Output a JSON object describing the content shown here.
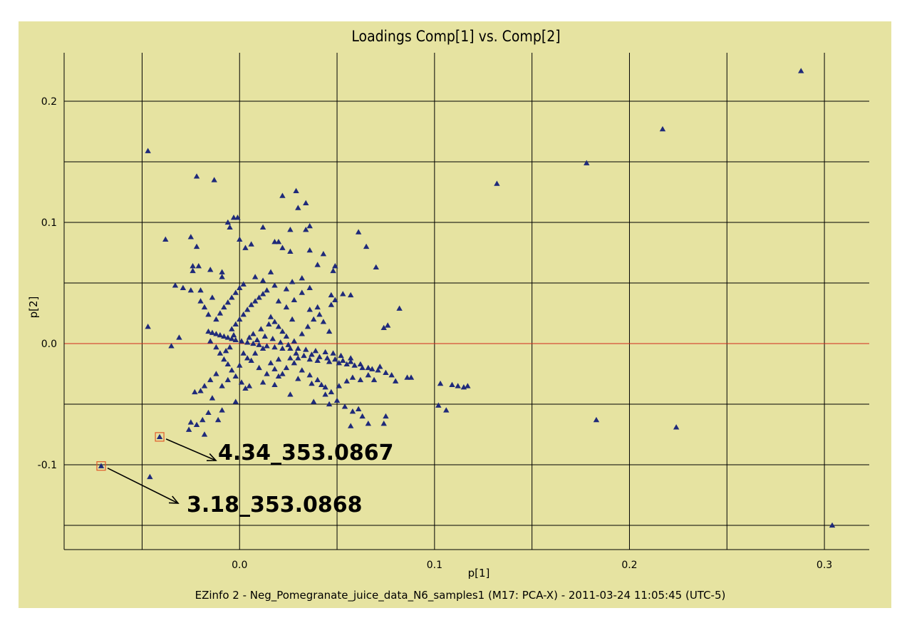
{
  "chart_data": {
    "type": "scatter",
    "title": "Loadings Comp[1] vs. Comp[2]",
    "xlabel": "p[1]",
    "ylabel": "p[2]",
    "footer": "EZinfo 2 - Neg_Pomegranate_juice_data_N6_samples1 (M17: PCA-X) - 2011-03-24 11:05:45 (UTC-5)",
    "xlim": [
      -0.09,
      0.323
    ],
    "ylim": [
      -0.17,
      0.24
    ],
    "x_ticks": [
      -0.05,
      0.0,
      0.05,
      0.1,
      0.15,
      0.2,
      0.25,
      0.3
    ],
    "x_tick_labels": [
      "",
      "0.0",
      "",
      "0.1",
      "",
      "0.2",
      "",
      "0.3"
    ],
    "y_ticks": [
      -0.15,
      -0.1,
      -0.05,
      0.0,
      0.05,
      0.1,
      0.15,
      0.2
    ],
    "y_tick_labels": [
      "",
      "-0.1",
      "",
      "0.0",
      "",
      "0.1",
      "",
      "0.2"
    ],
    "grid": true,
    "zero_line": 0.0,
    "colors": {
      "background": "#e6e3a1",
      "marker": "#1f2a7a",
      "zero_line": "#d22a1a",
      "grid": "#000000",
      "highlight_box": "#e05a2a"
    },
    "points": [
      [
        0.288,
        0.225
      ],
      [
        0.217,
        0.177
      ],
      [
        0.178,
        0.149
      ],
      [
        0.132,
        0.132
      ],
      [
        0.183,
        -0.063
      ],
      [
        0.224,
        -0.069
      ],
      [
        0.304,
        -0.15
      ],
      [
        -0.047,
        0.159
      ],
      [
        -0.022,
        0.138
      ],
      [
        -0.013,
        0.135
      ],
      [
        -0.047,
        0.014
      ],
      [
        -0.046,
        -0.11
      ],
      [
        -0.035,
        -0.002
      ],
      [
        -0.031,
        0.005
      ],
      [
        0.061,
        0.092
      ],
      [
        0.065,
        0.08
      ],
      [
        0.07,
        0.063
      ],
      [
        0.082,
        0.029
      ],
      [
        0.076,
        0.015
      ],
      [
        0.074,
        0.013
      ],
      [
        0.086,
        -0.028
      ],
      [
        0.088,
        -0.028
      ],
      [
        0.103,
        -0.033
      ],
      [
        0.109,
        -0.034
      ],
      [
        0.112,
        -0.035
      ],
      [
        0.115,
        -0.036
      ],
      [
        0.117,
        -0.035
      ],
      [
        0.102,
        -0.051
      ],
      [
        0.106,
        -0.055
      ],
      [
        0.075,
        -0.06
      ],
      [
        0.074,
        -0.066
      ],
      [
        0.066,
        -0.066
      ],
      [
        0.063,
        -0.06
      ],
      [
        0.057,
        -0.068
      ],
      [
        0.022,
        0.122
      ],
      [
        0.029,
        0.126
      ],
      [
        0.03,
        0.112
      ],
      [
        0.034,
        0.116
      ],
      [
        0.026,
        0.094
      ],
      [
        0.034,
        0.094
      ],
      [
        0.036,
        0.097
      ],
      [
        0.012,
        0.096
      ],
      [
        0.018,
        0.084
      ],
      [
        0.02,
        0.084
      ],
      [
        0.022,
        0.079
      ],
      [
        0.026,
        0.076
      ],
      [
        0.043,
        0.074
      ],
      [
        0.049,
        0.064
      ],
      [
        0.048,
        0.06
      ],
      [
        0.036,
        0.077
      ],
      [
        0.04,
        0.065
      ],
      [
        -0.006,
        0.1
      ],
      [
        -0.005,
        0.096
      ],
      [
        0.0,
        0.086
      ],
      [
        0.003,
        0.079
      ],
      [
        -0.003,
        0.104
      ],
      [
        -0.001,
        0.104
      ],
      [
        0.006,
        0.082
      ],
      [
        -0.038,
        0.086
      ],
      [
        -0.025,
        0.088
      ],
      [
        -0.022,
        0.08
      ],
      [
        -0.024,
        0.064
      ],
      [
        -0.024,
        0.06
      ],
      [
        -0.021,
        0.064
      ],
      [
        -0.015,
        0.061
      ],
      [
        -0.009,
        0.059
      ],
      [
        -0.033,
        0.048
      ],
      [
        -0.029,
        0.046
      ],
      [
        -0.025,
        0.044
      ],
      [
        -0.02,
        0.044
      ],
      [
        -0.009,
        0.055
      ],
      [
        0.016,
        0.059
      ],
      [
        0.032,
        0.054
      ],
      [
        0.027,
        0.051
      ],
      [
        0.047,
        0.04
      ],
      [
        0.053,
        0.041
      ],
      [
        0.057,
        0.04
      ],
      [
        0.049,
        0.036
      ],
      [
        0.047,
        0.032
      ],
      [
        0.04,
        0.03
      ],
      [
        0.036,
        0.028
      ],
      [
        -0.014,
        -0.045
      ],
      [
        -0.016,
        -0.057
      ],
      [
        -0.019,
        -0.063
      ],
      [
        -0.022,
        -0.067
      ],
      [
        -0.025,
        -0.065
      ],
      [
        -0.026,
        -0.071
      ],
      [
        -0.018,
        -0.075
      ],
      [
        -0.011,
        -0.063
      ],
      [
        -0.009,
        -0.055
      ],
      [
        -0.002,
        -0.048
      ],
      [
        0.005,
        -0.035
      ],
      [
        0.012,
        -0.032
      ],
      [
        0.018,
        -0.034
      ],
      [
        0.026,
        -0.042
      ],
      [
        0.038,
        -0.048
      ],
      [
        0.046,
        -0.05
      ],
      [
        0.05,
        -0.047
      ],
      [
        0.054,
        -0.052
      ],
      [
        0.058,
        -0.056
      ],
      [
        0.061,
        -0.054
      ],
      [
        0.044,
        -0.042
      ],
      [
        0.042,
        -0.034
      ],
      [
        0.037,
        -0.033
      ],
      [
        0.03,
        -0.029
      ],
      [
        0.022,
        -0.025
      ],
      [
        0.018,
        -0.021
      ],
      [
        0.016,
        -0.016
      ],
      [
        0.02,
        -0.013
      ],
      [
        0.026,
        -0.012
      ],
      [
        0.03,
        -0.012
      ],
      [
        0.036,
        -0.013
      ],
      [
        0.04,
        -0.014
      ],
      [
        0.046,
        -0.015
      ],
      [
        0.051,
        -0.016
      ],
      [
        0.055,
        -0.017
      ],
      [
        0.059,
        -0.018
      ],
      [
        0.063,
        -0.02
      ],
      [
        0.066,
        -0.02
      ],
      [
        0.068,
        -0.021
      ],
      [
        0.071,
        -0.022
      ],
      [
        0.075,
        -0.024
      ],
      [
        0.078,
        -0.026
      ],
      [
        0.08,
        -0.031
      ],
      [
        0.072,
        -0.019
      ],
      [
        0.062,
        -0.017
      ],
      [
        0.057,
        -0.012
      ],
      [
        0.052,
        -0.01
      ],
      [
        0.048,
        -0.008
      ],
      [
        0.044,
        -0.007
      ],
      [
        0.039,
        -0.006
      ],
      [
        0.034,
        -0.005
      ],
      [
        0.03,
        -0.004
      ],
      [
        0.026,
        -0.004
      ],
      [
        0.022,
        -0.004
      ],
      [
        0.018,
        -0.003
      ],
      [
        0.014,
        -0.002
      ],
      [
        0.01,
        -0.001
      ],
      [
        0.007,
        0.0
      ],
      [
        0.004,
        0.001
      ],
      [
        0.001,
        0.002
      ],
      [
        -0.002,
        0.003
      ],
      [
        -0.004,
        0.004
      ],
      [
        -0.006,
        0.005
      ],
      [
        -0.008,
        0.006
      ],
      [
        -0.01,
        0.007
      ],
      [
        -0.012,
        0.008
      ],
      [
        -0.014,
        0.009
      ],
      [
        -0.016,
        0.01
      ],
      [
        -0.015,
        0.002
      ],
      [
        -0.012,
        -0.003
      ],
      [
        -0.01,
        -0.008
      ],
      [
        -0.008,
        -0.013
      ],
      [
        -0.006,
        -0.017
      ],
      [
        -0.004,
        -0.022
      ],
      [
        -0.002,
        -0.027
      ],
      [
        0.001,
        -0.032
      ],
      [
        0.003,
        -0.037
      ],
      [
        -0.012,
        -0.025
      ],
      [
        -0.015,
        -0.03
      ],
      [
        -0.018,
        -0.035
      ],
      [
        -0.02,
        -0.039
      ],
      [
        -0.023,
        -0.04
      ],
      [
        -0.009,
        -0.035
      ],
      [
        -0.006,
        -0.03
      ],
      [
        0.0,
        -0.018
      ],
      [
        0.004,
        -0.012
      ],
      [
        0.008,
        -0.008
      ],
      [
        0.012,
        -0.004
      ],
      [
        -0.004,
        0.012
      ],
      [
        -0.002,
        0.016
      ],
      [
        0.0,
        0.02
      ],
      [
        0.002,
        0.024
      ],
      [
        0.004,
        0.028
      ],
      [
        0.006,
        0.032
      ],
      [
        0.008,
        0.035
      ],
      [
        0.01,
        0.038
      ],
      [
        0.012,
        0.041
      ],
      [
        0.014,
        0.044
      ],
      [
        -0.012,
        0.02
      ],
      [
        -0.01,
        0.025
      ],
      [
        -0.008,
        0.03
      ],
      [
        -0.006,
        0.034
      ],
      [
        -0.004,
        0.038
      ],
      [
        -0.002,
        0.042
      ],
      [
        0.0,
        0.046
      ],
      [
        0.002,
        0.049
      ],
      [
        -0.016,
        0.024
      ],
      [
        -0.018,
        0.03
      ],
      [
        -0.02,
        0.035
      ],
      [
        -0.014,
        0.038
      ],
      [
        0.016,
        0.022
      ],
      [
        0.018,
        0.018
      ],
      [
        0.02,
        0.014
      ],
      [
        0.022,
        0.01
      ],
      [
        0.024,
        0.006
      ],
      [
        0.028,
        0.002
      ],
      [
        0.032,
        0.008
      ],
      [
        0.035,
        0.014
      ],
      [
        0.038,
        0.02
      ],
      [
        0.041,
        0.024
      ],
      [
        0.043,
        0.018
      ],
      [
        0.046,
        0.01
      ],
      [
        0.027,
        0.02
      ],
      [
        0.024,
        0.03
      ],
      [
        0.02,
        0.035
      ],
      [
        0.028,
        0.036
      ],
      [
        0.032,
        0.042
      ],
      [
        0.036,
        0.046
      ],
      [
        0.024,
        0.045
      ],
      [
        0.018,
        0.048
      ],
      [
        0.012,
        0.052
      ],
      [
        0.008,
        0.055
      ],
      [
        -0.005,
        -0.003
      ],
      [
        -0.007,
        -0.006
      ],
      [
        0.002,
        -0.008
      ],
      [
        0.006,
        -0.014
      ],
      [
        0.01,
        -0.02
      ],
      [
        0.014,
        -0.025
      ],
      [
        0.02,
        -0.027
      ],
      [
        0.024,
        -0.02
      ],
      [
        0.028,
        -0.016
      ],
      [
        0.032,
        -0.022
      ],
      [
        0.036,
        -0.026
      ],
      [
        0.04,
        -0.03
      ],
      [
        0.044,
        -0.036
      ],
      [
        0.047,
        -0.04
      ],
      [
        0.051,
        -0.035
      ],
      [
        0.055,
        -0.031
      ],
      [
        0.058,
        -0.028
      ],
      [
        0.062,
        -0.03
      ],
      [
        0.066,
        -0.026
      ],
      [
        0.069,
        -0.03
      ],
      [
        0.007,
        0.008
      ],
      [
        0.011,
        0.012
      ],
      [
        0.015,
        0.016
      ],
      [
        -0.003,
        0.007
      ],
      [
        0.005,
        0.005
      ],
      [
        0.009,
        0.003
      ],
      [
        0.013,
        0.006
      ],
      [
        0.017,
        0.004
      ],
      [
        0.021,
        0.001
      ],
      [
        0.025,
        -0.001
      ],
      [
        0.029,
        -0.008
      ],
      [
        0.033,
        -0.01
      ],
      [
        0.037,
        -0.009
      ],
      [
        0.041,
        -0.011
      ],
      [
        0.045,
        -0.012
      ],
      [
        0.049,
        -0.013
      ],
      [
        0.053,
        -0.014
      ],
      [
        0.057,
        -0.015
      ]
    ],
    "highlighted": [
      {
        "x": -0.071,
        "y": -0.101,
        "label": "3.18_353.0868"
      },
      {
        "x": -0.041,
        "y": -0.077,
        "label": "4.34_353.0867"
      }
    ]
  }
}
